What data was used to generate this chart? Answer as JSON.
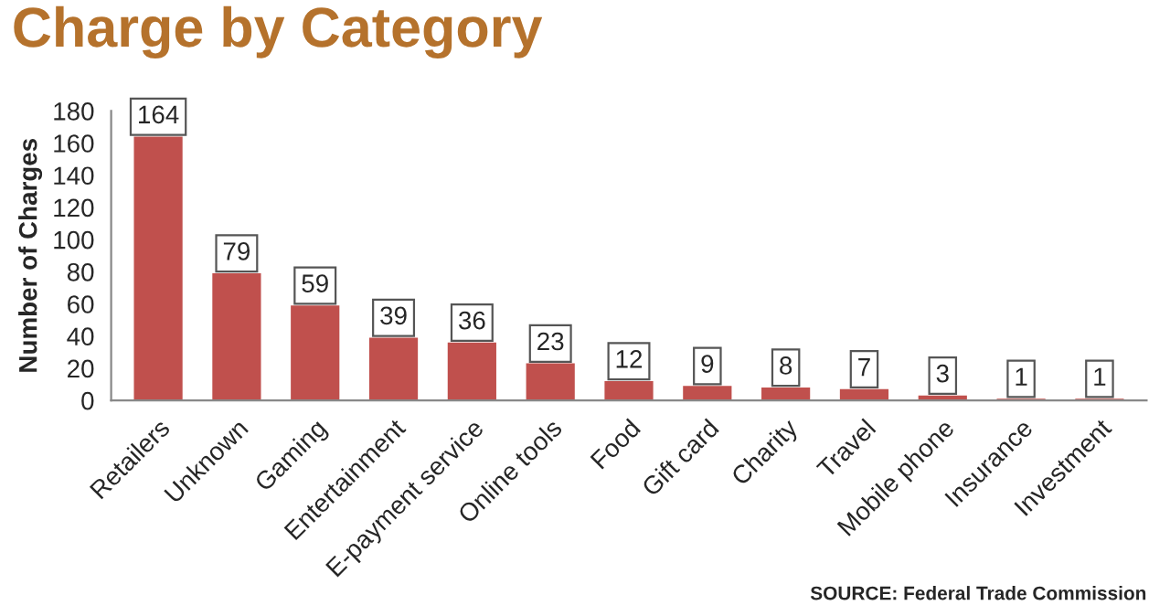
{
  "chart_data": {
    "type": "bar",
    "title": "Charge by Category",
    "ylabel": "Number of Charges",
    "categories": [
      "Retailers",
      "Unknown",
      "Gaming",
      "Entertainment",
      "E-payment service",
      "Online tools",
      "Food",
      "Gift card",
      "Charity",
      "Travel",
      "Mobile phone",
      "Insurance",
      "Investment"
    ],
    "values": [
      164,
      79,
      59,
      39,
      36,
      23,
      12,
      9,
      8,
      7,
      3,
      1,
      1
    ],
    "color": "#c0504d",
    "ylim": [
      0,
      180
    ],
    "yticks": [
      0,
      20,
      40,
      60,
      80,
      100,
      120,
      140,
      160,
      180
    ],
    "data_labels": true,
    "grid": false,
    "annotations": [
      "SOURCE: Federal Trade Commission"
    ]
  }
}
